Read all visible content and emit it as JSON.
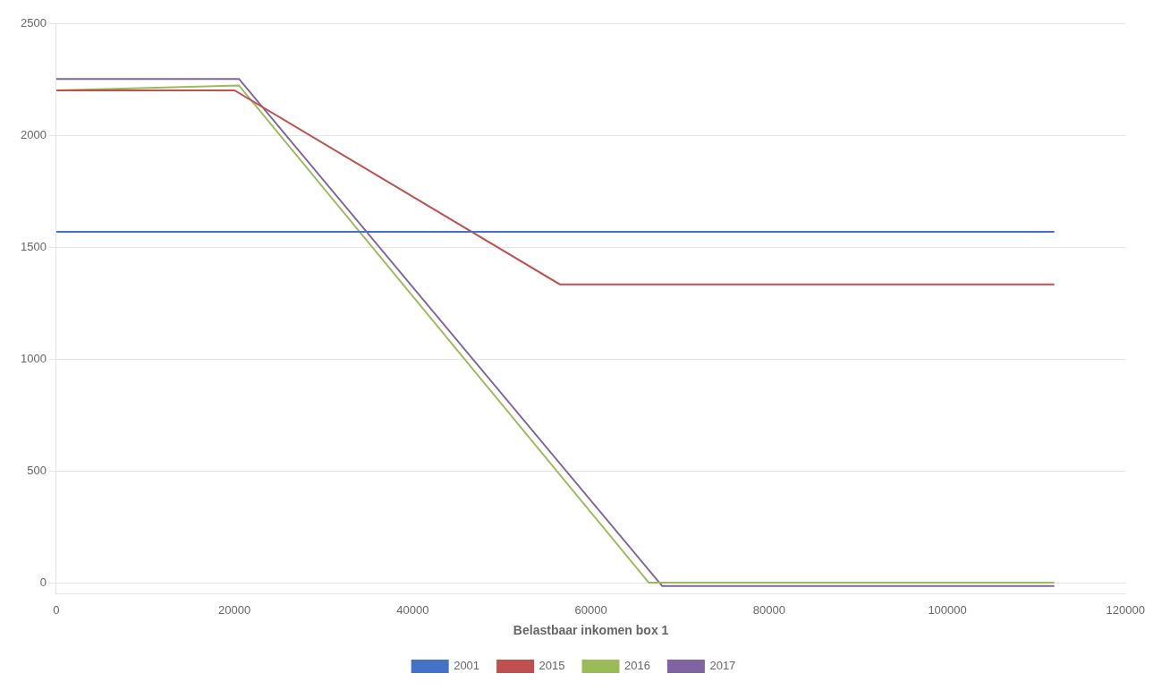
{
  "chart_data": {
    "type": "line",
    "x_label": "Belastbaar inkomen box 1",
    "series": [
      {
        "name": "2001",
        "color": "#4472C4",
        "x": [
          0,
          112000
        ],
        "values": [
          1570,
          1570
        ]
      },
      {
        "name": "2015",
        "color": "#C0504D",
        "x": [
          0,
          20000,
          56500,
          112000
        ],
        "values": [
          2203,
          2203,
          1335,
          1335
        ]
      },
      {
        "name": "2016",
        "color": "#9BBB59",
        "x": [
          0,
          20500,
          66500,
          112000
        ],
        "values": [
          2203,
          2225,
          0,
          0
        ]
      },
      {
        "name": "2017",
        "color": "#8064A2",
        "x": [
          0,
          20500,
          68000,
          112000
        ],
        "values": [
          2254,
          2254,
          -15,
          -15
        ]
      }
    ],
    "xlim": [
      0,
      120000
    ],
    "xticks": [
      0,
      20000,
      40000,
      60000,
      80000,
      100000,
      120000
    ],
    "ylim": [
      -50,
      2500
    ],
    "yticks": [
      0,
      500,
      1000,
      1500,
      2000,
      2500
    ],
    "grid": "y",
    "legend": "bottom"
  }
}
